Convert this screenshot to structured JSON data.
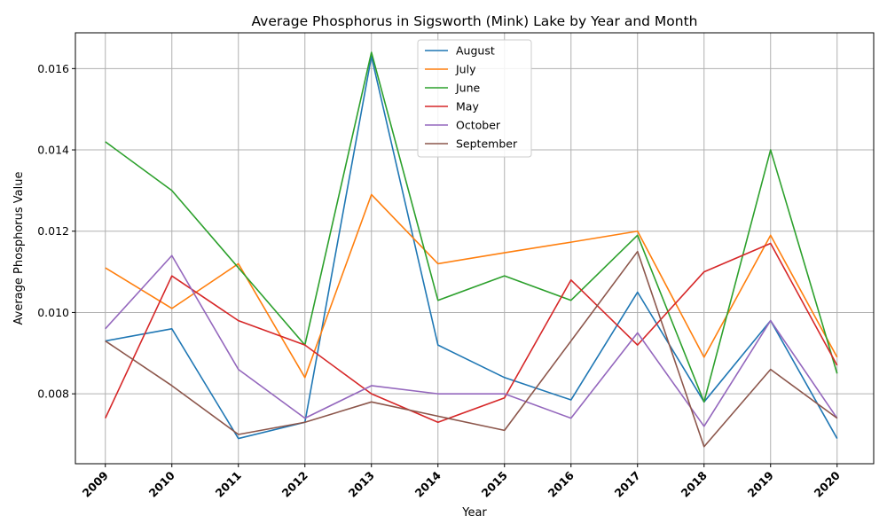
{
  "chart_data": {
    "type": "line",
    "title": "Average Phosphorus in Sigsworth (Mink) Lake by Year and Month",
    "xlabel": "Year",
    "ylabel": "Average Phosphorus Value",
    "x": [
      2009,
      2010,
      2011,
      2012,
      2013,
      2014,
      2015,
      2016,
      2017,
      2018,
      2019,
      2020
    ],
    "x_tick_labels": [
      "2009",
      "2010",
      "2011",
      "2012",
      "2013",
      "2014",
      "2015",
      "2016",
      "2017",
      "2018",
      "2019",
      "2020"
    ],
    "xlim": [
      2008.55,
      2020.55
    ],
    "ylim": [
      0.00628,
      0.01688
    ],
    "y_ticks": [
      0.008,
      0.01,
      0.012,
      0.014,
      0.016
    ],
    "y_tick_labels": [
      "0.008",
      "0.010",
      "0.012",
      "0.014",
      "0.016"
    ],
    "grid": true,
    "legend_position": "top-center",
    "series": [
      {
        "name": "August",
        "color": "#1f77b4",
        "values": [
          0.0093,
          0.0096,
          0.0069,
          0.0073,
          0.0163,
          0.0092,
          0.0084,
          0.00785,
          0.0105,
          0.0078,
          0.0098,
          0.0069
        ]
      },
      {
        "name": "July",
        "color": "#ff7f0e",
        "values": [
          0.0111,
          0.0101,
          0.0112,
          0.0084,
          0.0129,
          0.0112,
          0.01147,
          0.01173,
          0.012,
          0.0089,
          0.0119,
          0.0089
        ]
      },
      {
        "name": "June",
        "color": "#2ca02c",
        "values": [
          0.0142,
          0.013,
          0.0111,
          0.0092,
          0.0164,
          0.0103,
          0.0109,
          0.0103,
          0.0119,
          0.0078,
          0.014,
          0.0085
        ]
      },
      {
        "name": "May",
        "color": "#d62728",
        "values": [
          0.0074,
          0.0109,
          0.0098,
          0.0092,
          0.008,
          0.0073,
          0.0079,
          0.0108,
          0.0092,
          0.011,
          0.0117,
          0.0087
        ]
      },
      {
        "name": "October",
        "color": "#9467bd",
        "values": [
          0.0096,
          0.0114,
          0.0086,
          0.0074,
          0.0082,
          0.008,
          0.008,
          0.0074,
          0.0095,
          0.0072,
          0.0098,
          0.0074
        ]
      },
      {
        "name": "September",
        "color": "#8c564b",
        "values": [
          0.0093,
          0.0082,
          0.007,
          0.0073,
          0.0078,
          0.00745,
          0.0071,
          0.0093,
          0.0115,
          0.0067,
          0.0086,
          0.0074
        ]
      }
    ]
  }
}
